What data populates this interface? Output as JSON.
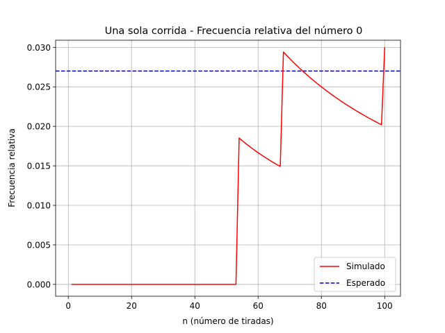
{
  "chart_data": {
    "type": "line",
    "title": "Una sola corrida - Frecuencia relativa del número 0",
    "xlabel": "n (número de tiradas)",
    "ylabel": "Frecuencia relativa",
    "xlim": [
      -4,
      105
    ],
    "ylim": [
      -0.0015,
      0.0309
    ],
    "xticks": [
      0,
      20,
      40,
      60,
      80,
      100
    ],
    "yticks": [
      0.0,
      0.005,
      0.01,
      0.015,
      0.02,
      0.025,
      0.03
    ],
    "ytick_labels": [
      "0.000",
      "0.005",
      "0.010",
      "0.015",
      "0.020",
      "0.025",
      "0.030"
    ],
    "grid": true,
    "legend_position": "lower-right",
    "series": [
      {
        "name": "Simulado",
        "color": "#ff0000",
        "style": "solid",
        "hits": [
          54,
          68,
          100
        ]
      },
      {
        "name": "Esperado",
        "color": "#0000cc",
        "style": "dashed",
        "value": 0.027
      }
    ]
  }
}
